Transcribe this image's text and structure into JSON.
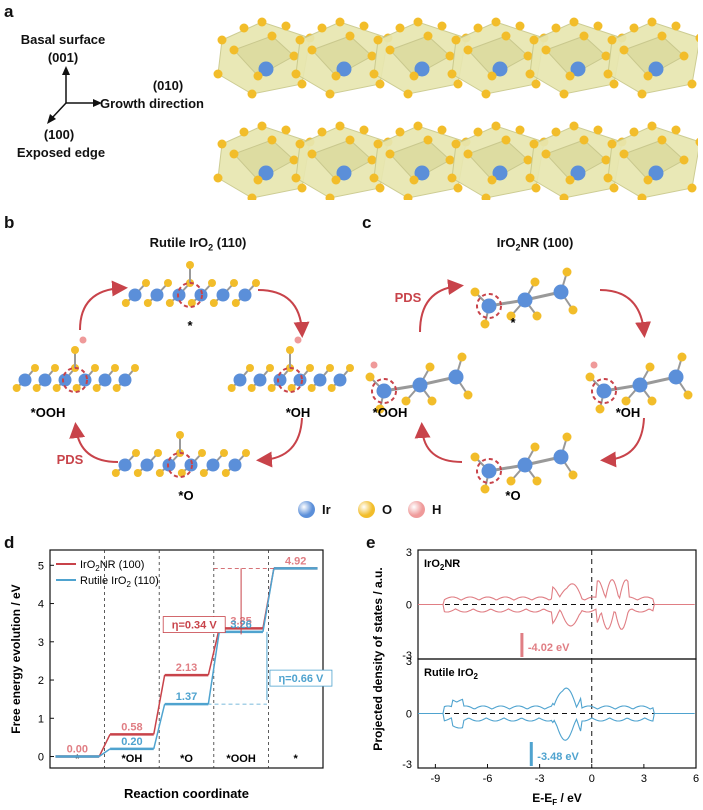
{
  "panel_a": {
    "letter": "a",
    "basal_label": "Basal surface",
    "basal_index": "(001)",
    "growth_index": "(010)",
    "growth_label": "Growth direction",
    "edge_index": "(100)",
    "edge_label": "Exposed edge"
  },
  "panel_b": {
    "letter": "b",
    "title_pre": "Rutile IrO",
    "title_sub": "2",
    "title_post": " (110)",
    "states": [
      "*",
      "*OH",
      "*O",
      "*OOH"
    ],
    "pds": "PDS"
  },
  "panel_c": {
    "letter": "c",
    "title_pre": "IrO",
    "title_sub": "2",
    "title_post": "NR (100)",
    "states": [
      "*",
      "*OH",
      "*O",
      "*OOH"
    ],
    "pds": "PDS"
  },
  "atom_legend": [
    {
      "label": "Ir",
      "color": "#5b8fd9"
    },
    {
      "label": "O",
      "color": "#f2bd2a"
    },
    {
      "label": "H",
      "color": "#ef9a9a"
    }
  ],
  "panel_d": {
    "letter": "d",
    "chart_data": {
      "type": "line",
      "xlabel": "Reaction coordinate",
      "ylabel": "Free energy evolution / eV",
      "categories": [
        "*",
        "*OH",
        "*O",
        "*OOH",
        "*"
      ],
      "ylim": [
        -0.3,
        5.4
      ],
      "yticks": [
        "0",
        "1",
        "2",
        "3",
        "4",
        "5"
      ],
      "series": [
        {
          "name_pre": "IrO",
          "name_sub": "2",
          "name_post": "NR (100)",
          "color": "#c8434a",
          "label_color": "#e07e84",
          "values": [
            0.0,
            0.58,
            2.13,
            3.35,
            4.92
          ],
          "labels": [
            "0.00",
            "0.58",
            "2.13",
            "3.35",
            "4.92"
          ]
        },
        {
          "name_pre": "Rutile IrO",
          "name_sub": "2",
          "name_post": " (110)",
          "color": "#4fa3cf",
          "label_color": "#4fa3cf",
          "values": [
            0.0,
            0.2,
            1.37,
            3.26,
            4.92
          ],
          "labels": [
            "",
            "0.20",
            "1.37",
            "3.26",
            ""
          ]
        }
      ],
      "annotations": [
        {
          "text": "η=0.34 V",
          "color": "#c8434a"
        },
        {
          "text": "η=0.66 V",
          "color": "#4fa3cf"
        }
      ]
    }
  },
  "panel_e": {
    "letter": "e",
    "chart_data": {
      "type": "line",
      "xlabel": "E-E",
      "xlabel_sub": "F",
      "xlabel_post": " / eV",
      "ylabel": "Projected density of states / a.u.",
      "xlim": [
        -10,
        6
      ],
      "xticks": [
        "-9",
        "-6",
        "-3",
        "0",
        "3",
        "6"
      ],
      "subplots": [
        {
          "name_pre": "IrO",
          "name_sub": "2",
          "name_post": "NR",
          "color": "#e07e84",
          "ylim": [
            -3,
            3
          ],
          "yticks": [
            "3",
            "0",
            "-3"
          ],
          "band_center": -4.02,
          "band_center_label": "-4.02 eV"
        },
        {
          "name_pre": "Rutile IrO",
          "name_sub": "2",
          "name_post": "",
          "color": "#4fa3cf",
          "ylim": [
            -3,
            3
          ],
          "yticks": [
            "3",
            "0",
            "-3"
          ],
          "band_center": -3.48,
          "band_center_label": "-3.48 eV"
        }
      ]
    }
  }
}
